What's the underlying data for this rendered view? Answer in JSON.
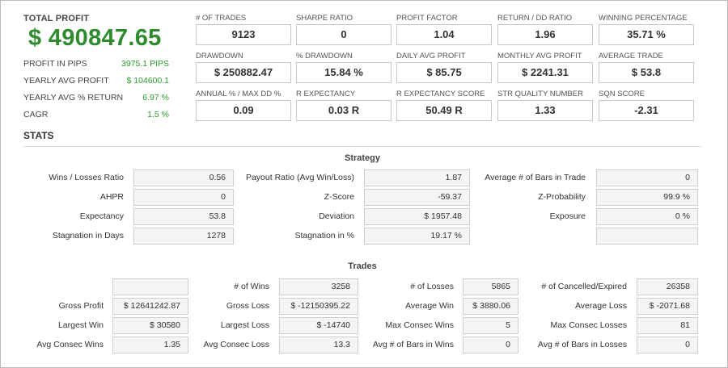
{
  "summary": {
    "total_profit_label": "TOTAL PROFIT",
    "total_profit_value": "$ 490847.65",
    "rows": [
      {
        "label": "PROFIT IN PIPS",
        "value": "3975.1 PIPS"
      },
      {
        "label": "YEARLY AVG PROFIT",
        "value": "$ 104600.1"
      },
      {
        "label": "YEARLY AVG % RETURN",
        "value": "6.97 %"
      },
      {
        "label": "CAGR",
        "value": "1.5 %"
      }
    ]
  },
  "metrics": [
    {
      "label": "# OF TRADES",
      "value": "9123"
    },
    {
      "label": "SHARPE RATIO",
      "value": "0"
    },
    {
      "label": "PROFIT FACTOR",
      "value": "1.04"
    },
    {
      "label": "RETURN / DD RATIO",
      "value": "1.96"
    },
    {
      "label": "WINNING PERCENTAGE",
      "value": "35.71 %"
    },
    {
      "label": "DRAWDOWN",
      "value": "$ 250882.47"
    },
    {
      "label": "% DRAWDOWN",
      "value": "15.84 %"
    },
    {
      "label": "DAILY AVG PROFIT",
      "value": "$ 85.75"
    },
    {
      "label": "MONTHLY AVG PROFIT",
      "value": "$ 2241.31"
    },
    {
      "label": "AVERAGE TRADE",
      "value": "$ 53.8"
    },
    {
      "label": "ANNUAL % / MAX DD %",
      "value": "0.09"
    },
    {
      "label": "R EXPECTANCY",
      "value": "0.03 R"
    },
    {
      "label": "R EXPECTANCY SCORE",
      "value": "50.49 R"
    },
    {
      "label": "STR QUALITY NUMBER",
      "value": "1.33"
    },
    {
      "label": "SQN SCORE",
      "value": "-2.31"
    }
  ],
  "stats": {
    "title": "STATS",
    "strategy": {
      "title": "Strategy",
      "rows": [
        [
          {
            "label": "Wins / Losses Ratio",
            "value": "0.56"
          },
          {
            "label": "Payout Ratio (Avg Win/Loss)",
            "value": "1.87"
          },
          {
            "label": "Average # of Bars in Trade",
            "value": "0"
          }
        ],
        [
          {
            "label": "AHPR",
            "value": "0"
          },
          {
            "label": "Z-Score",
            "value": "-59.37"
          },
          {
            "label": "Z-Probability",
            "value": "99.9 %"
          }
        ],
        [
          {
            "label": "Expectancy",
            "value": "53.8"
          },
          {
            "label": "Deviation",
            "value": "$ 1957.48"
          },
          {
            "label": "Exposure",
            "value": "0 %"
          }
        ],
        [
          {
            "label": "Stagnation in Days",
            "value": "1278"
          },
          {
            "label": "Stagnation in %",
            "value": "19.17 %"
          },
          {
            "label": "",
            "value": ""
          }
        ]
      ]
    },
    "trades": {
      "title": "Trades",
      "rows": [
        [
          {
            "label": "",
            "value": ""
          },
          {
            "label": "# of Wins",
            "value": "3258"
          },
          {
            "label": "# of Losses",
            "value": "5865"
          },
          {
            "label": "# of Cancelled/Expired",
            "value": "26358"
          }
        ],
        [
          {
            "label": "Gross Profit",
            "value": "$ 12641242.87"
          },
          {
            "label": "Gross Loss",
            "value": "$ -12150395.22"
          },
          {
            "label": "Average Win",
            "value": "$ 3880.06"
          },
          {
            "label": "Average Loss",
            "value": "$ -2071.68"
          }
        ],
        [
          {
            "label": "Largest Win",
            "value": "$ 30580"
          },
          {
            "label": "Largest Loss",
            "value": "$ -14740"
          },
          {
            "label": "Max Consec Wins",
            "value": "5"
          },
          {
            "label": "Max Consec Losses",
            "value": "81"
          }
        ],
        [
          {
            "label": "Avg Consec Wins",
            "value": "1.35"
          },
          {
            "label": "Avg Consec Loss",
            "value": "13.3"
          },
          {
            "label": "Avg # of Bars in Wins",
            "value": "0"
          },
          {
            "label": "Avg # of Bars in Losses",
            "value": "0"
          }
        ]
      ]
    }
  }
}
